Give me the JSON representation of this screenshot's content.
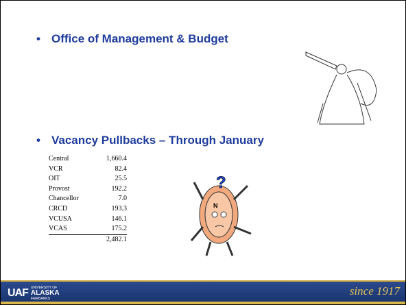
{
  "bullets": [
    "Office of Management & Budget",
    "Vacancy Pullbacks – Through January"
  ],
  "table": {
    "rows": [
      [
        "Central",
        "1,660.4"
      ],
      [
        "VCR",
        "82.4"
      ],
      [
        "OIT",
        "25.5"
      ],
      [
        "Provost",
        "192.2"
      ],
      [
        "Chancellor",
        "7.0"
      ],
      [
        "CRCD",
        "193.3"
      ],
      [
        "VCUSA",
        "146.1"
      ],
      [
        "VCAS",
        "175.2"
      ]
    ],
    "total": "2,482.1"
  },
  "footer": {
    "logo_top": "UNIVERSITY OF",
    "logo_main": "ALASKA",
    "logo_bottom": "FAIRBANKS",
    "tagline": "since 1917"
  }
}
